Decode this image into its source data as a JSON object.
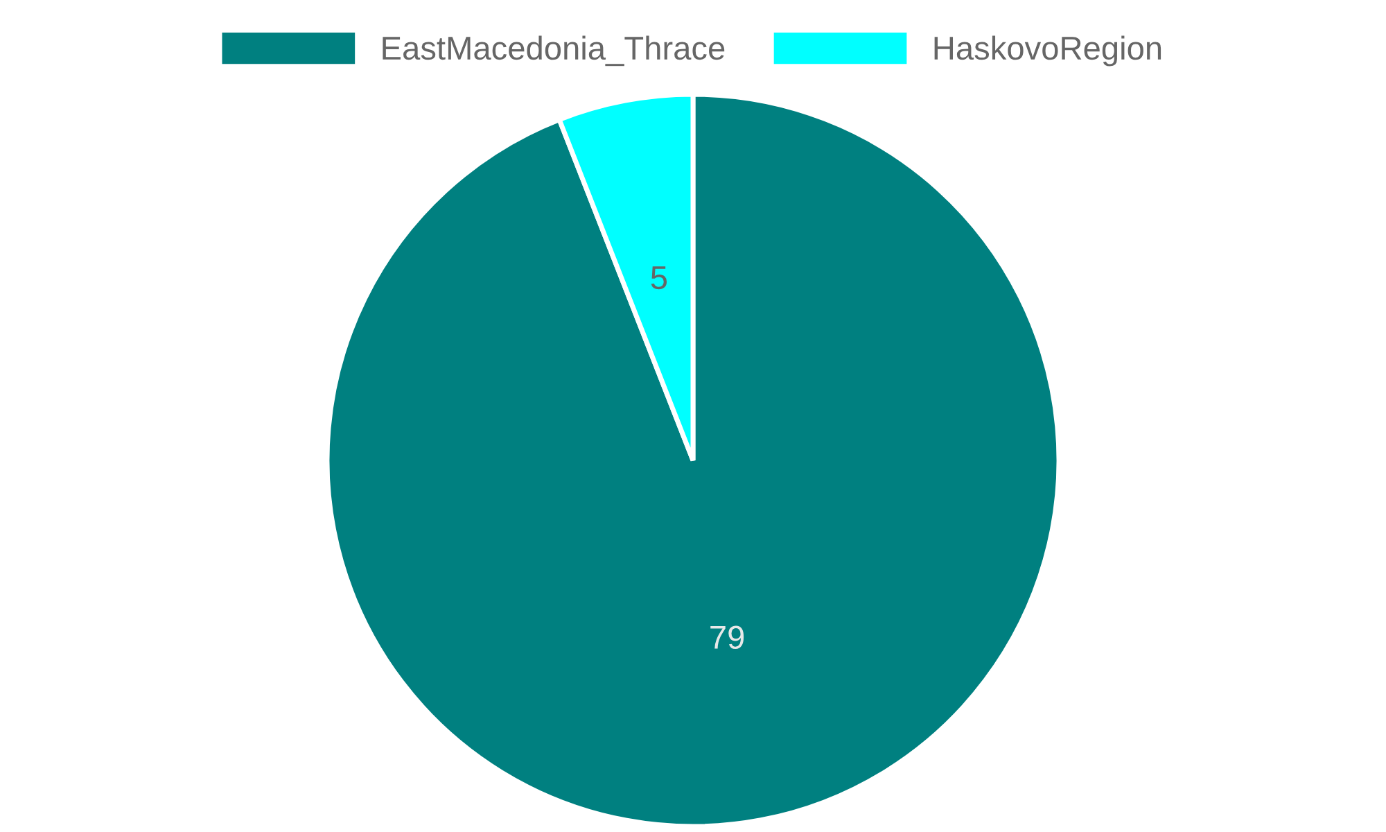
{
  "chart_data": {
    "type": "pie",
    "categories": [
      "EastMacedonia_Thrace",
      "HaskovoRegion"
    ],
    "values": [
      79,
      5
    ],
    "colors": [
      "#008080",
      "#00ffff"
    ],
    "data_labels": true,
    "legend": "top"
  }
}
